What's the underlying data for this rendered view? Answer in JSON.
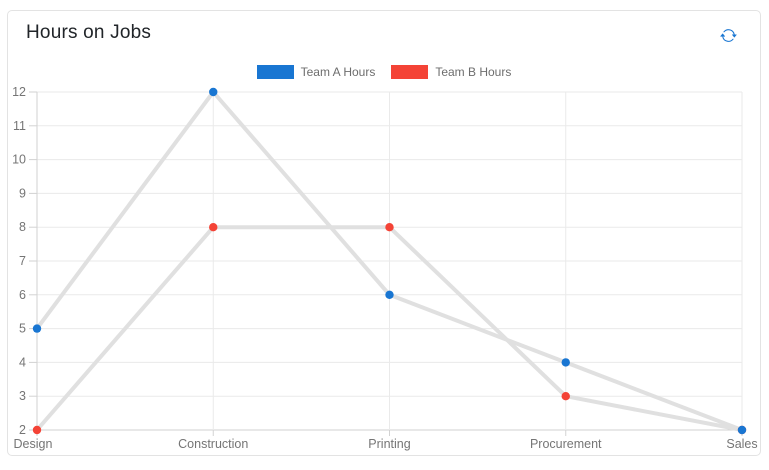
{
  "card": {
    "title": "Hours on Jobs",
    "refresh_icon": "refresh-icon"
  },
  "legend": [
    {
      "label": "Team A Hours",
      "color": "#1976d2"
    },
    {
      "label": "Team B Hours",
      "color": "#f44336"
    }
  ],
  "chart_data": {
    "type": "line",
    "title": "Hours on Jobs",
    "categories": [
      "Design",
      "Construction",
      "Printing",
      "Procurement",
      "Sales"
    ],
    "series": [
      {
        "name": "Team A Hours",
        "color": "#1976d2",
        "values": [
          5,
          12,
          6,
          4,
          2
        ]
      },
      {
        "name": "Team B Hours",
        "color": "#f44336",
        "values": [
          2,
          8,
          8,
          3,
          2
        ]
      }
    ],
    "xlabel": "",
    "ylabel": "",
    "ylim": [
      2,
      12
    ],
    "y_ticks": [
      2,
      3,
      4,
      5,
      6,
      7,
      8,
      9,
      10,
      11,
      12
    ],
    "grid": true,
    "legend_position": "top",
    "connector_color": "#e0e0e0",
    "axis_label_color": "#757575"
  }
}
